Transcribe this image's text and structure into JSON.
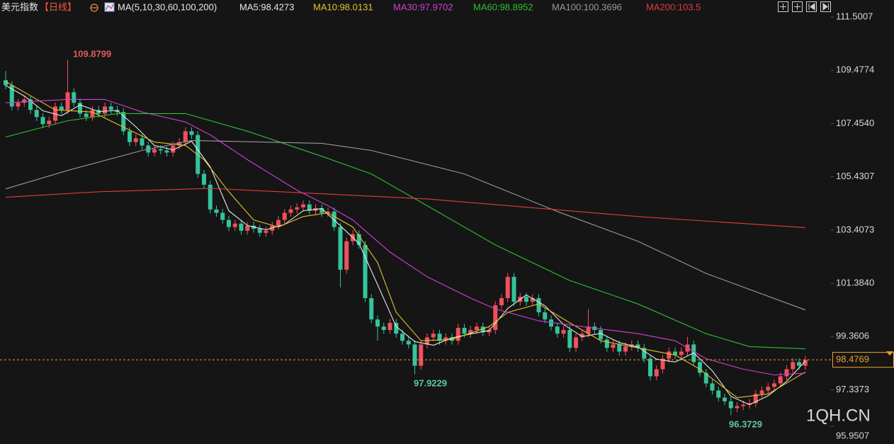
{
  "chart_data": {
    "type": "candlestick",
    "title": "美元指数",
    "period": "【日线】",
    "indicator": "MA(5,10,30,60,100,200)",
    "up_color": "#f0505c",
    "down_color": "#33c49c",
    "ylim": [
      95.9507,
      111.5007
    ],
    "yticks": [
      111.5007,
      109.4774,
      {
        "value": 107.454,
        "label": "107.4540"
      },
      105.4307,
      103.4073,
      {
        "value": 101.384,
        "label": "101.3840"
      },
      99.3606,
      97.3373,
      95.9507
    ],
    "last_price": 98.4769,
    "last_price_color": "#f0a030",
    "watermark": "1QH.CN",
    "open": [
      109.1,
      108.91,
      108.1,
      108.24,
      108.37,
      107.97,
      107.7,
      107.43,
      107.56,
      108.1,
      107.97,
      108.64,
      108.24,
      107.83,
      107.7,
      107.97,
      107.83,
      108.1,
      107.97,
      107.89,
      107.16,
      106.75,
      106.89,
      106.62,
      106.35,
      106.48,
      106.43,
      106.35,
      106.62,
      106.75,
      107.16,
      107.02,
      105.54,
      105.13,
      104.19,
      104.06,
      103.79,
      103.52,
      103.65,
      103.38,
      103.57,
      103.46,
      103.3,
      103.38,
      103.57,
      103.79,
      104.06,
      104.19,
      104.27,
      104.38,
      104.14,
      104.24,
      104.06,
      104.11,
      103.52,
      101.9,
      102.98,
      103.25,
      102.84,
      100.82,
      100.01,
      99.74,
      99.61,
      99.88,
      99.47,
      99.2,
      99.06,
      98.25,
      99.06,
      99.33,
      99.47,
      99.2,
      99.33,
      99.2,
      99.69,
      99.47,
      99.61,
      99.74,
      99.52,
      99.61,
      100.55,
      100.82,
      101.63,
      100.68,
      100.87,
      100.68,
      100.82,
      100.28,
      100.01,
      99.74,
      99.47,
      99.61,
      98.93,
      99.33,
      99.47,
      99.74,
      99.61,
      99.25,
      98.93,
      99.06,
      98.79,
      98.98,
      99.06,
      98.93,
      98.52,
      97.85,
      98.12,
      98.52,
      98.79,
      98.66,
      98.79,
      99.06,
      98.39,
      97.98,
      97.58,
      97.31,
      97.04,
      96.9,
      96.64,
      96.72,
      96.77,
      96.83,
      97.18,
      97.31,
      97.45,
      97.58,
      97.85,
      98.12,
      98.39,
      98.25
    ],
    "high": [
      109.45,
      109.06,
      108.39,
      108.52,
      108.52,
      108.12,
      107.85,
      107.71,
      108.25,
      108.25,
      109.8799,
      108.79,
      108.39,
      107.98,
      108.12,
      108.12,
      108.25,
      108.25,
      108.12,
      108.04,
      107.31,
      107.04,
      107.04,
      106.77,
      106.63,
      106.63,
      106.58,
      106.77,
      106.9,
      107.31,
      107.31,
      107.17,
      105.69,
      105.28,
      104.34,
      104.21,
      103.94,
      103.8,
      103.8,
      103.72,
      103.72,
      103.61,
      103.53,
      103.72,
      103.94,
      104.21,
      104.34,
      104.42,
      104.53,
      104.53,
      104.39,
      104.39,
      104.26,
      104.26,
      103.67,
      103.13,
      103.4,
      103.4,
      102.99,
      100.97,
      100.16,
      99.89,
      100.03,
      100.03,
      99.62,
      99.35,
      99.21,
      99.21,
      99.48,
      99.62,
      99.62,
      99.48,
      99.48,
      99.84,
      99.84,
      99.76,
      99.89,
      99.89,
      99.76,
      100.7,
      100.97,
      101.78,
      101.78,
      101.02,
      101.02,
      100.97,
      100.97,
      100.43,
      100.16,
      99.89,
      99.76,
      99.76,
      99.48,
      99.62,
      100.4,
      99.89,
      99.76,
      99.4,
      99.21,
      99.21,
      99.13,
      99.21,
      99.21,
      99.08,
      98.67,
      98.27,
      98.67,
      98.94,
      98.94,
      98.94,
      99.35,
      99.21,
      98.54,
      98.13,
      97.73,
      97.46,
      97.19,
      97.05,
      96.87,
      96.92,
      96.98,
      97.33,
      97.46,
      97.6,
      97.73,
      98.0,
      98.27,
      98.54,
      98.54,
      98.63
    ],
    "low": [
      108.76,
      107.95,
      107.95,
      108.09,
      107.82,
      107.55,
      107.28,
      107.28,
      107.41,
      107.82,
      107.82,
      108.09,
      107.68,
      107.55,
      107.55,
      107.68,
      107.68,
      107.82,
      107.74,
      107.01,
      106.6,
      106.6,
      106.47,
      106.2,
      106.2,
      106.28,
      106.2,
      106.2,
      106.47,
      106.6,
      106.87,
      105.39,
      104.98,
      104.04,
      103.91,
      103.64,
      103.37,
      103.37,
      103.23,
      103.23,
      103.31,
      103.15,
      103.15,
      103.23,
      103.42,
      103.64,
      103.91,
      104.04,
      104.12,
      103.99,
      103.99,
      103.91,
      103.91,
      103.37,
      101.23,
      101.75,
      102.83,
      102.69,
      100.67,
      99.86,
      99.2,
      99.46,
      99.46,
      99.32,
      99.05,
      98.91,
      97.9229,
      98.1,
      98.91,
      99.18,
      99.05,
      99.05,
      99.05,
      99.05,
      99.32,
      99.32,
      99.46,
      99.37,
      99.37,
      99.46,
      100.4,
      100.67,
      100.53,
      100.53,
      100.53,
      100.53,
      100.13,
      99.86,
      99.59,
      99.32,
      99.32,
      98.78,
      98.78,
      99.18,
      99.32,
      99.46,
      99.1,
      98.78,
      98.78,
      98.64,
      98.64,
      98.83,
      98.78,
      98.37,
      97.7,
      97.7,
      97.97,
      98.37,
      98.51,
      98.51,
      98.64,
      98.24,
      97.83,
      97.43,
      97.16,
      96.89,
      96.75,
      96.3729,
      96.49,
      96.57,
      96.62,
      96.68,
      97.03,
      97.16,
      97.3,
      97.43,
      97.7,
      97.97,
      98.1,
      98.1
    ],
    "close": [
      108.91,
      108.1,
      108.24,
      108.37,
      107.97,
      107.7,
      107.43,
      107.56,
      108.1,
      107.97,
      108.64,
      108.24,
      107.83,
      107.7,
      107.97,
      107.83,
      108.1,
      107.97,
      107.89,
      107.16,
      106.75,
      106.89,
      106.62,
      106.35,
      106.48,
      106.43,
      106.35,
      106.62,
      106.75,
      107.16,
      107.02,
      105.54,
      105.13,
      104.19,
      104.06,
      103.79,
      103.52,
      103.65,
      103.38,
      103.57,
      103.46,
      103.3,
      103.38,
      103.57,
      103.79,
      104.06,
      104.19,
      104.27,
      104.38,
      104.14,
      104.24,
      104.06,
      104.11,
      103.52,
      101.9,
      102.98,
      103.25,
      102.84,
      100.82,
      100.01,
      99.74,
      99.61,
      99.88,
      99.47,
      99.2,
      99.06,
      98.25,
      99.06,
      99.33,
      99.47,
      99.2,
      99.33,
      99.2,
      99.69,
      99.47,
      99.61,
      99.74,
      99.52,
      99.61,
      100.55,
      100.82,
      101.63,
      100.68,
      100.87,
      100.68,
      100.82,
      100.28,
      100.01,
      99.74,
      99.47,
      99.61,
      98.93,
      99.33,
      99.47,
      99.74,
      99.61,
      99.25,
      98.93,
      99.06,
      98.79,
      98.98,
      99.06,
      98.93,
      98.52,
      97.85,
      98.12,
      98.52,
      98.79,
      98.66,
      98.79,
      99.06,
      98.39,
      97.98,
      97.58,
      97.31,
      97.04,
      96.9,
      96.64,
      96.72,
      96.77,
      96.83,
      97.18,
      97.31,
      97.45,
      97.58,
      97.85,
      98.12,
      98.39,
      98.25,
      98.4769
    ],
    "ma": [
      {
        "name": "MA5",
        "legend": "MA5:98.4273",
        "color": "#e8e8e8",
        "x": [
          0,
          3,
          6,
          9,
          12,
          15,
          18,
          21,
          24,
          27,
          30,
          33,
          36,
          39,
          42,
          45,
          48,
          51,
          54,
          57,
          60,
          63,
          66,
          69,
          72,
          75,
          78,
          81,
          84,
          87,
          90,
          93,
          96,
          99,
          102,
          105,
          108,
          111,
          114,
          117,
          120,
          123,
          126,
          129
        ],
        "values": [
          108.9,
          108.5,
          107.94,
          107.75,
          108.16,
          107.91,
          107.95,
          107.33,
          106.62,
          106.45,
          106.78,
          105.81,
          104.14,
          103.58,
          103.42,
          103.62,
          104.14,
          104.22,
          103.57,
          102.9,
          101.33,
          99.74,
          99.17,
          99.03,
          99.31,
          99.46,
          99.59,
          100.43,
          100.94,
          100.53,
          99.82,
          99.36,
          99.48,
          99.13,
          98.96,
          98.5,
          98.39,
          98.74,
          98.06,
          97.09,
          96.77,
          97.11,
          97.66,
          98.4273
        ]
      },
      {
        "name": "MA10",
        "legend": "MA10:98.0131",
        "color": "#e6c229",
        "x": [
          0,
          4,
          8,
          14,
          18,
          24,
          29,
          32,
          36,
          40,
          44,
          48,
          52,
          56,
          60,
          63,
          67,
          72,
          78,
          81,
          86,
          91,
          96,
          102,
          108,
          112,
          118,
          123,
          129
        ],
        "values": [
          109.05,
          108.51,
          107.97,
          107.89,
          107.43,
          106.75,
          106.62,
          106.08,
          104.86,
          103.79,
          103.52,
          103.92,
          104.06,
          103.52,
          102.17,
          100.28,
          99.2,
          99.25,
          99.74,
          100.28,
          100.6,
          99.88,
          99.2,
          98.93,
          98.66,
          98.12,
          97.04,
          97.18,
          98.0131
        ]
      },
      {
        "name": "MA30",
        "legend": "MA30:97.9702",
        "color": "#d23fd6",
        "x": [
          0,
          10,
          16,
          22,
          29,
          33,
          39,
          47,
          52,
          56,
          62,
          68,
          75,
          79,
          86,
          93,
          102,
          108,
          113,
          119,
          124,
          129
        ],
        "values": [
          108.24,
          108.37,
          108.37,
          107.89,
          107.51,
          107.02,
          106.08,
          104.92,
          104.33,
          103.79,
          102.57,
          101.63,
          100.82,
          100.41,
          99.96,
          99.74,
          99.47,
          99.2,
          98.52,
          98.12,
          97.9,
          97.9702
        ]
      },
      {
        "name": "MA60",
        "legend": "MA60:98.8952",
        "color": "#2fbf2f",
        "x": [
          0,
          10,
          18,
          29,
          39,
          51,
          59,
          68,
          79,
          91,
          102,
          113,
          120,
          129
        ],
        "values": [
          106.94,
          107.56,
          107.83,
          107.83,
          107.16,
          106.21,
          105.54,
          104.33,
          102.84,
          101.49,
          100.6,
          99.47,
          98.98,
          98.8952
        ]
      },
      {
        "name": "MA100",
        "legend": "MA100:100.3696",
        "color": "#9a9a9a",
        "x": [
          0,
          10,
          22,
          30,
          51,
          59,
          74,
          89,
          102,
          113,
          129
        ],
        "values": [
          104.97,
          105.67,
          106.43,
          106.81,
          106.7,
          106.43,
          105.54,
          104.11,
          102.98,
          101.76,
          100.3696
        ]
      },
      {
        "name": "MA200",
        "legend": "MA200:103.5",
        "color": "#e03c3c",
        "x": [
          0,
          15,
          33,
          68,
          102,
          129
        ],
        "values": [
          104.65,
          104.86,
          104.99,
          104.59,
          103.92,
          103.5
        ]
      }
    ]
  }
}
